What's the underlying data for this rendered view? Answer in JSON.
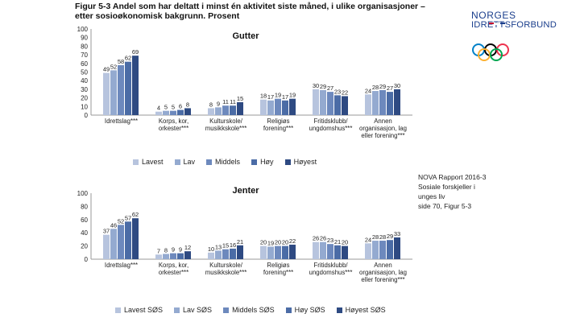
{
  "figure_title_line1": "Figur 5-3 Andel som har deltatt i minst én aktivitet siste måned, i ulike organisasjoner –",
  "figure_title_line2": "etter sosioøkonomisk bakgrunn. Prosent",
  "brand": {
    "line1": "NORGES",
    "line2": "IDRETTSFORBUND"
  },
  "note": [
    "NOVA Rapport 2016-3",
    "Sosiale forskjeller i",
    "unges liv",
    "side 70, Figur 5-3"
  ],
  "colors": {
    "s1": "#b7c4de",
    "s2": "#94aad0",
    "s3": "#6d89bd",
    "s4": "#4b6ca6",
    "s5": "#2e4a82",
    "frame": "#1a3e8c",
    "flag_red": "#c8102e",
    "flag_blue": "#1a3e8c",
    "axis": "#999999",
    "text": "#222222"
  },
  "chart_data": [
    {
      "type": "bar",
      "title": "Gutter",
      "ylim": [
        0,
        100
      ],
      "yticks": [
        0,
        10,
        20,
        30,
        40,
        50,
        60,
        70,
        80,
        90,
        100
      ],
      "categories": [
        "Idrettslag***",
        "Korps, kor, orkester***",
        "Kulturskole/ musikkskole***",
        "Religiøs forening***",
        "Fritidsklubb/ ungdomshus***",
        "Annen organisasjon, lag eller forening***"
      ],
      "category_lines": [
        [
          "Idrettslag***"
        ],
        [
          "Korps, kor,",
          "orkester***"
        ],
        [
          "Kulturskole/",
          "musikkskole***"
        ],
        [
          "Religiøs",
          "forening***"
        ],
        [
          "Fritidsklubb/",
          "ungdomshus***"
        ],
        [
          "Annen",
          "organisasjon, lag",
          "eller forening***"
        ]
      ],
      "series": [
        {
          "name": "Lavest",
          "values": [
            49,
            4,
            8,
            18,
            30,
            24
          ]
        },
        {
          "name": "Lav",
          "values": [
            52,
            5,
            9,
            17,
            29,
            28
          ]
        },
        {
          "name": "Middels",
          "values": [
            58,
            5,
            11,
            19,
            27,
            29
          ]
        },
        {
          "name": "Høy",
          "values": [
            62,
            6,
            11,
            17,
            23,
            27
          ]
        },
        {
          "name": "Høyest",
          "values": [
            69,
            8,
            15,
            19,
            22,
            30
          ]
        }
      ]
    },
    {
      "type": "bar",
      "title": "Jenter",
      "ylim": [
        0,
        100
      ],
      "yticks": [
        0,
        20,
        40,
        60,
        80,
        100
      ],
      "categories": [
        "Idrettslag***",
        "Korps, kor, orkester***",
        "Kulturskole/ musikkskole***",
        "Religiøs forening***",
        "Fritidsklubb/ ungdomshus***",
        "Annen organisasjon, lag eller forening***"
      ],
      "category_lines": [
        [
          "Idrettslag***"
        ],
        [
          "Korps, kor,",
          "orkester***"
        ],
        [
          "Kulturskole/",
          "musikkskole***"
        ],
        [
          "Religiøs",
          "forening***"
        ],
        [
          "Fritidsklubb/",
          "ungdomshus***"
        ],
        [
          "Annen",
          "organisasjon, lag",
          "eller forening***"
        ]
      ],
      "series": [
        {
          "name": "Lavest SØS",
          "values": [
            37,
            7,
            10,
            20,
            26,
            24
          ]
        },
        {
          "name": "Lav SØS",
          "values": [
            46,
            8,
            13,
            19,
            26,
            28
          ]
        },
        {
          "name": "Middels SØS",
          "values": [
            52,
            9,
            15,
            20,
            23,
            28
          ]
        },
        {
          "name": "Høy SØS",
          "values": [
            57,
            9,
            16,
            20,
            21,
            29
          ]
        },
        {
          "name": "Høyest SØS",
          "values": [
            62,
            12,
            21,
            22,
            20,
            33
          ]
        }
      ]
    }
  ]
}
